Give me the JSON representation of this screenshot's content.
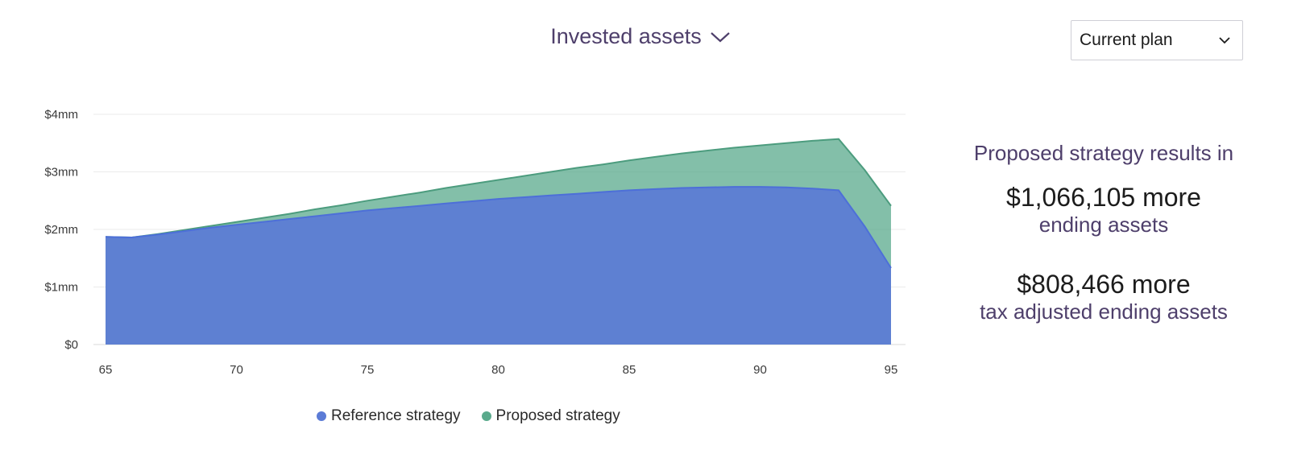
{
  "header": {
    "title": "Invested assets",
    "icon": "chevron-down-icon"
  },
  "plan_select": {
    "value": "Current plan",
    "icon": "chevron-down-icon"
  },
  "summary": {
    "intro": "Proposed strategy results in",
    "stats": [
      {
        "amount": "$1,066,105 more",
        "label": "ending assets"
      },
      {
        "amount": "$808,466 more",
        "label": "tax adjusted ending assets"
      }
    ]
  },
  "colors": {
    "reference": "#5b7bd6",
    "proposed": "#5aaa8c",
    "text_accent": "#4e3f6b"
  },
  "chart_data": {
    "type": "area",
    "x": [
      65,
      66,
      67,
      68,
      69,
      70,
      71,
      72,
      73,
      74,
      75,
      76,
      77,
      78,
      79,
      80,
      81,
      82,
      83,
      84,
      85,
      86,
      87,
      88,
      89,
      90,
      91,
      92,
      93,
      94,
      95
    ],
    "x_ticks": [
      65,
      70,
      75,
      80,
      85,
      90,
      95
    ],
    "y_ticks": [
      0,
      1,
      2,
      3,
      4
    ],
    "y_tick_labels": [
      "$0",
      "$1mm",
      "$2mm",
      "$3mm",
      "$4mm"
    ],
    "ylim": [
      0,
      4
    ],
    "grid": true,
    "legend": "bottom",
    "series": [
      {
        "name": "Reference strategy",
        "values": [
          1.87,
          1.86,
          1.91,
          1.97,
          2.03,
          2.08,
          2.13,
          2.18,
          2.23,
          2.28,
          2.33,
          2.37,
          2.41,
          2.45,
          2.49,
          2.53,
          2.56,
          2.59,
          2.62,
          2.65,
          2.68,
          2.7,
          2.72,
          2.73,
          2.74,
          2.74,
          2.73,
          2.71,
          2.68,
          2.05,
          1.33
        ]
      },
      {
        "name": "Proposed strategy",
        "values": [
          1.87,
          1.86,
          1.92,
          1.99,
          2.06,
          2.13,
          2.2,
          2.27,
          2.35,
          2.42,
          2.5,
          2.57,
          2.64,
          2.72,
          2.79,
          2.86,
          2.93,
          3.0,
          3.07,
          3.13,
          3.2,
          3.26,
          3.32,
          3.37,
          3.42,
          3.46,
          3.5,
          3.54,
          3.57,
          3.03,
          2.41
        ]
      }
    ]
  }
}
